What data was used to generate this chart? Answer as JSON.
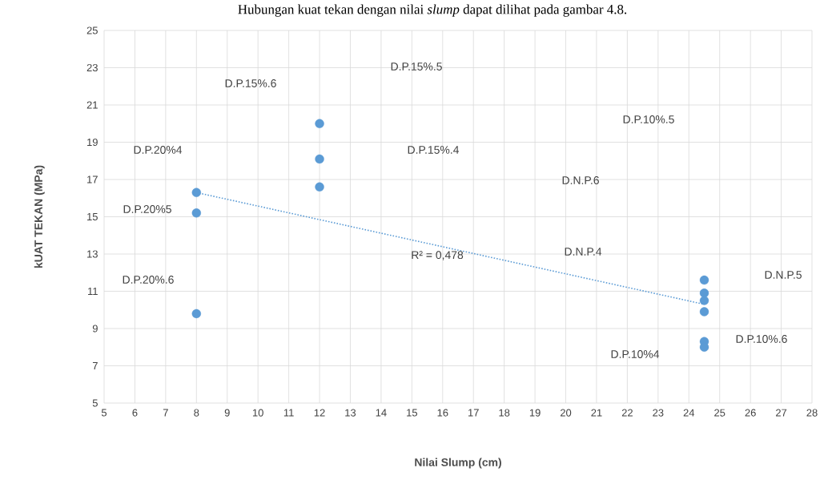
{
  "chart_data": {
    "type": "scatter",
    "title": "Hubungan kuat tekan dengan nilai *slump* dapat dilihat pada gambar 4.8.",
    "xlabel": "Nilai Slump (cm)",
    "ylabel": "kUAT TEKAN (MPa)",
    "x": [
      8,
      8,
      8,
      12,
      12,
      12,
      24.5,
      24.5,
      24.5,
      24.5,
      24.5,
      24.5
    ],
    "series": [
      {
        "type": "scatter",
        "color": "#5b9bd5",
        "marker": "circle",
        "values": [
          16.3,
          15.2,
          9.8,
          20.0,
          18.1,
          16.6,
          11.6,
          10.9,
          10.5,
          9.9,
          8.3,
          8.0
        ]
      },
      {
        "type": "line",
        "color": "#5b9bd5",
        "line_style": "dotted",
        "marker": "none",
        "x": [
          8,
          24.5
        ],
        "values": [
          16.3,
          10.3
        ]
      }
    ],
    "annotations": [
      "D.P.15%.6",
      "D.P.15%.5",
      "D.P.10%.5",
      "D.P.20%4",
      "D.P.15%.4",
      "D.N.P.6",
      "D.P.20%5",
      "R² = 0,478",
      "D.N.P.4",
      "D.P.20%.6",
      "D.N.P.5",
      "D.P.10%.6",
      "D.P.10%4"
    ],
    "xlim": [
      5,
      28
    ],
    "ylim": [
      5,
      25
    ],
    "xticks": [
      5,
      6,
      7,
      8,
      9,
      10,
      11,
      12,
      13,
      14,
      15,
      16,
      17,
      18,
      19,
      20,
      21,
      22,
      23,
      24,
      25,
      26,
      27,
      28
    ],
    "yticks": [
      5,
      7,
      9,
      11,
      13,
      15,
      17,
      19,
      21,
      23,
      25
    ],
    "grid": true
  }
}
